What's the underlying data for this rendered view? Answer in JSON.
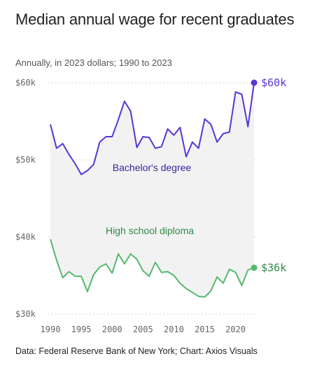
{
  "title": "Median annual wage for recent graduates",
  "subtitle": "Annually, in 2023 dollars; 1990 to 2023",
  "source": "Data: Federal Reserve Bank of New York; Chart: Axios Visuals",
  "colors": {
    "bachelor": "#5a35d6",
    "bachelor_label": "#3a1f9e",
    "highschool": "#55b96e",
    "highschool_label": "#2f8a45",
    "fill": "#f2f2f2",
    "grid": "#d6d6d6"
  },
  "chart_data": {
    "type": "line",
    "title": "Median annual wage for recent graduates",
    "subtitle": "Annually, in 2023 dollars; 1990 to 2023",
    "x": [
      1990,
      1991,
      1992,
      1993,
      1994,
      1995,
      1996,
      1997,
      1998,
      1999,
      2000,
      2001,
      2002,
      2003,
      2004,
      2005,
      2006,
      2007,
      2008,
      2009,
      2010,
      2011,
      2012,
      2013,
      2014,
      2015,
      2016,
      2017,
      2018,
      2019,
      2020,
      2021,
      2022,
      2023
    ],
    "ylim": [
      30000,
      60000
    ],
    "y_ticks": [
      30000,
      40000,
      50000,
      60000
    ],
    "y_tick_labels": [
      "$30k",
      "$40k",
      "$50k",
      "$60k"
    ],
    "x_ticks": [
      1990,
      1995,
      2000,
      2005,
      2010,
      2015,
      2020
    ],
    "x_tick_labels": [
      "1990",
      "1995",
      "2000",
      "2005",
      "2010",
      "2015",
      "2020"
    ],
    "grid": "horizontal dashed",
    "fill_between_series": true,
    "series": [
      {
        "name": "Bachelor's degree",
        "end_label": "$60k",
        "values": [
          54600,
          51500,
          52100,
          50700,
          49500,
          48100,
          48600,
          49400,
          52300,
          53000,
          53000,
          55200,
          57600,
          56300,
          51600,
          53000,
          52900,
          51500,
          51700,
          54000,
          53200,
          54200,
          50400,
          52300,
          51500,
          55300,
          54600,
          52300,
          53400,
          53600,
          58800,
          58500,
          54300,
          60000
        ]
      },
      {
        "name": "High school diploma",
        "end_label": "$36k",
        "values": [
          39700,
          37000,
          34700,
          35500,
          34900,
          34900,
          32900,
          35100,
          36100,
          36500,
          35300,
          37800,
          36500,
          37800,
          37100,
          35600,
          34900,
          36700,
          35400,
          35500,
          35000,
          34000,
          33300,
          32800,
          32300,
          32200,
          33000,
          34800,
          34000,
          35800,
          35400,
          33700,
          35700,
          36000
        ]
      }
    ]
  }
}
